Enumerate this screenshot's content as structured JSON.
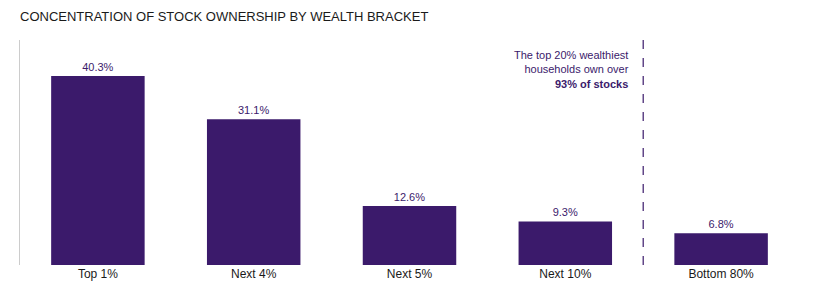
{
  "chart_data": {
    "type": "bar",
    "title": "CONCENTRATION OF STOCK OWNERSHIP BY WEALTH BRACKET",
    "categories": [
      "Top 1%",
      "Next 4%",
      "Next 5%",
      "Next 10%",
      "Bottom 80%"
    ],
    "values": [
      40.3,
      31.1,
      12.6,
      9.3,
      6.8
    ],
    "value_labels": [
      "40.3%",
      "31.1%",
      "12.6%",
      "9.3%",
      "6.8%"
    ],
    "data_labels": true,
    "color": "#3b1a6b",
    "ylim": [
      0,
      48
    ],
    "grid": false,
    "tick_labels": "x",
    "annotations": [
      "The top 20% wealthiest",
      "households own over",
      "93% of stocks"
    ]
  }
}
